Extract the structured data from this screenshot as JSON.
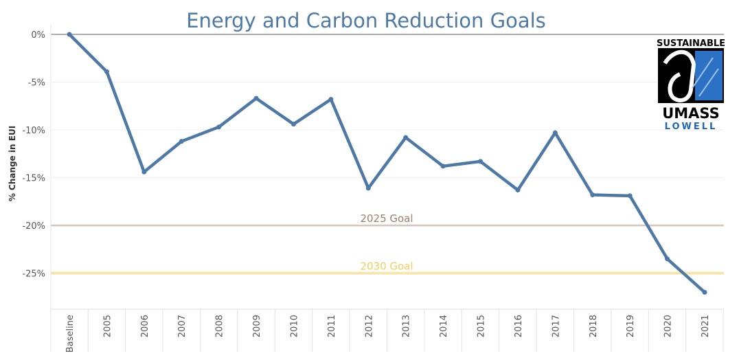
{
  "chart_data": {
    "type": "line",
    "title": "Energy and Carbon Reduction Goals",
    "ylabel": "% Change in EUI",
    "xlabel": "",
    "categories": [
      "Baseline",
      "2005",
      "2006",
      "2007",
      "2008",
      "2009",
      "2010",
      "2011",
      "2012",
      "2013",
      "2014",
      "2015",
      "2016",
      "2017",
      "2018",
      "2019",
      "2020",
      "2021"
    ],
    "values": [
      0,
      -3.9,
      -14.4,
      -11.2,
      -9.7,
      -6.7,
      -9.4,
      -6.8,
      -16.1,
      -10.8,
      -13.8,
      -13.3,
      -16.3,
      -10.3,
      -16.8,
      -16.9,
      -23.5,
      -27.0
    ],
    "ylim": [
      -28.5,
      0
    ],
    "yticks": [
      0,
      -5,
      -10,
      -15,
      -20,
      -25
    ],
    "ytick_labels": [
      "0%",
      "-5%",
      "-10%",
      "-15%",
      "-20%",
      "-25%"
    ],
    "goals": [
      {
        "label": "2025 Goal",
        "value": -20,
        "color": "#d5c6bd",
        "text_color": "#a07e6a"
      },
      {
        "label": "2030 Goal",
        "value": -25,
        "color": "#f7e6a7",
        "text_color": "#f2cf5c"
      }
    ],
    "series_color": "#4e79a7",
    "grid": true,
    "legend": "none"
  },
  "logo": {
    "top_text": "SUSTAINABLE",
    "middle_text": "UMASS",
    "bottom_text": "LOWELL",
    "bottom_color": "#1f68b3"
  }
}
